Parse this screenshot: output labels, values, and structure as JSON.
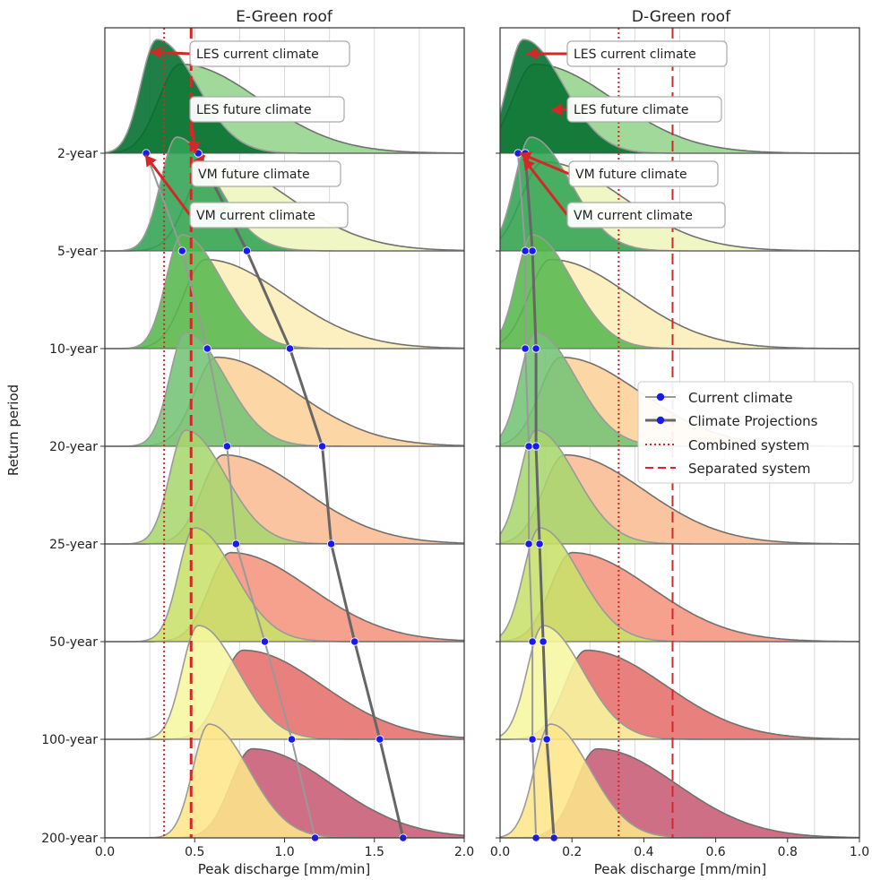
{
  "chart_data": [
    {
      "type": "ridgeline-density",
      "title": "E-Green roof",
      "xlabel": "Peak discharge [mm/min]",
      "ylabel": "Return period",
      "xlim": [
        0,
        2.0
      ],
      "xticks": [
        "0.0",
        "0.25",
        "0.5",
        "0.75",
        "1.0",
        "1.25",
        "1.5",
        "1.75",
        "2.0"
      ],
      "x_tick_labels": [
        "0.0",
        "0.5",
        "1.0",
        "1.5",
        "2.0"
      ],
      "return_periods": [
        "2-year",
        "5-year",
        "10-year",
        "20-year",
        "25-year",
        "50-year",
        "100-year",
        "200-year"
      ],
      "current_climate_points": [
        0.23,
        0.43,
        0.57,
        0.68,
        0.73,
        0.89,
        1.04,
        1.17
      ],
      "climate_projection_points": [
        0.52,
        0.79,
        1.03,
        1.21,
        1.26,
        1.39,
        1.53,
        1.66
      ],
      "combined_system": 0.33,
      "separated_system": 0.48,
      "current_density_mode": [
        0.29,
        0.4,
        0.43,
        0.45,
        0.45,
        0.5,
        0.52,
        0.58
      ],
      "future_density_mode": [
        0.42,
        0.58,
        0.56,
        0.62,
        0.66,
        0.7,
        0.77,
        0.82
      ],
      "grid": true,
      "annotations": [
        "LES current climate",
        "LES future climate",
        "VM future climate",
        "VM current climate"
      ]
    },
    {
      "type": "ridgeline-density",
      "title": "D-Green roof",
      "xlabel": "Peak discharge [mm/min]",
      "xlim": [
        0,
        1.0
      ],
      "x_tick_labels": [
        "0.0",
        "0.2",
        "0.4",
        "0.6",
        "0.8",
        "1.0"
      ],
      "current_climate_points": [
        0.05,
        0.07,
        0.07,
        0.08,
        0.08,
        0.09,
        0.09,
        0.1
      ],
      "climate_projection_points": [
        0.07,
        0.09,
        0.1,
        0.1,
        0.11,
        0.12,
        0.13,
        0.15
      ],
      "combined_system": 0.33,
      "separated_system": 0.48,
      "current_density_mode": [
        0.065,
        0.085,
        0.09,
        0.1,
        0.1,
        0.11,
        0.12,
        0.14
      ],
      "future_density_mode": [
        0.095,
        0.12,
        0.14,
        0.17,
        0.18,
        0.2,
        0.24,
        0.27
      ],
      "grid": true,
      "annotations": [
        "LES current climate",
        "LES future climate",
        "VM future climate",
        "VM current climate"
      ]
    }
  ],
  "legend": {
    "placement": "right-middle of D-Green roof panel",
    "items": [
      "Current climate",
      "Climate Projections",
      "Combined system",
      "Separated system"
    ]
  },
  "colors": {
    "current_line": "#999999",
    "projection_line": "#666666",
    "points": "#1a1aee",
    "threshold": "#d62728",
    "arrow": "#d62728",
    "current_fills": [
      "#006d2c",
      "#31a354",
      "#57b74f",
      "#74c476",
      "#a8d66e",
      "#c8e06a",
      "#f7f7a0",
      "#fde68a"
    ],
    "future_fills": [
      "#a1d99b",
      "#f0f6c4",
      "#fdf0c0",
      "#fdd6a5",
      "#fbc4a0",
      "#f6a08e",
      "#e8807e",
      "#cf6f86"
    ]
  }
}
